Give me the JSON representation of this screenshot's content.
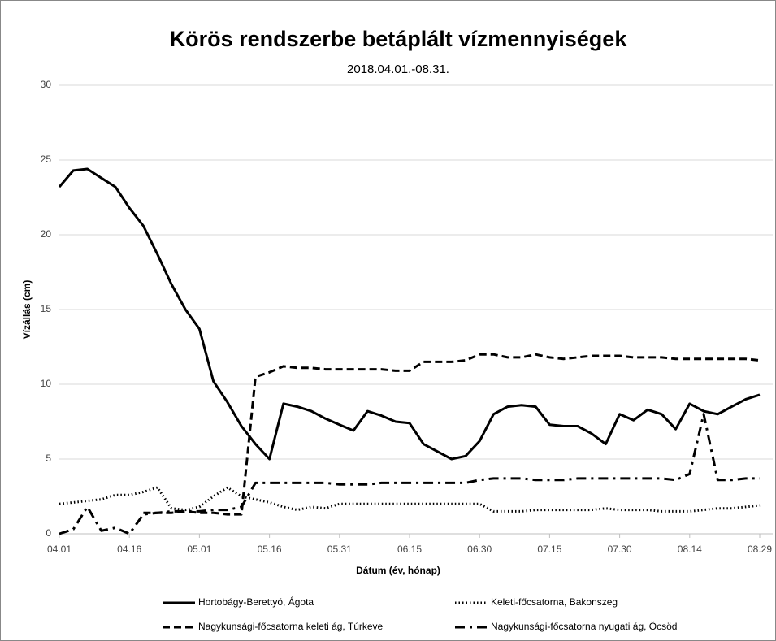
{
  "chart_data": {
    "type": "line",
    "title": "Körös rendszerbe betáplált vízmennyiségek",
    "subtitle": "2018.04.01.-08.31.",
    "x_label": "Dátum (év, hónap)",
    "y_label": "Vízállás (cm)",
    "categories": [
      "04.01",
      null,
      null,
      null,
      null,
      "04.16",
      null,
      null,
      null,
      null,
      "05.01",
      null,
      null,
      null,
      null,
      "05.16",
      null,
      null,
      null,
      null,
      "05.31",
      null,
      null,
      null,
      null,
      "06.15",
      null,
      null,
      null,
      null,
      "06.30",
      null,
      null,
      null,
      null,
      "07.15",
      null,
      null,
      null,
      null,
      "07.30",
      null,
      null,
      null,
      null,
      "08.14",
      null,
      null,
      null,
      null,
      "08.29"
    ],
    "ylim": [
      0,
      30
    ],
    "yticks": [
      0,
      5,
      10,
      15,
      20,
      25,
      30
    ],
    "grid": true,
    "legend": "bottom",
    "series": [
      {
        "name": "Hortobágy-Berettyó, Ágota",
        "color": "#000000",
        "dash": "solid",
        "values": [
          23.2,
          24.3,
          24.4,
          23.8,
          23.2,
          21.8,
          20.6,
          18.7,
          16.7,
          15.0,
          13.7,
          10.2,
          8.8,
          7.2,
          6.0,
          5.0,
          8.7,
          8.5,
          8.2,
          7.7,
          7.3,
          6.9,
          8.2,
          7.9,
          7.5,
          7.4,
          6.0,
          5.5,
          5.0,
          5.2,
          6.2,
          8.0,
          8.5,
          8.6,
          8.5,
          7.3,
          7.2,
          7.2,
          6.7,
          6.0,
          8.0,
          7.6,
          8.3,
          8.0,
          7.0,
          8.7,
          8.2,
          8.0,
          8.5,
          9.0,
          9.3
        ]
      },
      {
        "name": "Keleti-főcsatorna, Bakonszeg",
        "color": "#000000",
        "dash": "dotted",
        "values": [
          2.0,
          2.1,
          2.2,
          2.3,
          2.6,
          2.6,
          2.8,
          3.1,
          1.7,
          1.6,
          1.8,
          2.5,
          3.1,
          2.5,
          2.3,
          2.1,
          1.8,
          1.6,
          1.8,
          1.7,
          2.0,
          2.0,
          2.0,
          2.0,
          2.0,
          2.0,
          2.0,
          2.0,
          2.0,
          2.0,
          2.0,
          1.5,
          1.5,
          1.5,
          1.6,
          1.6,
          1.6,
          1.6,
          1.6,
          1.7,
          1.6,
          1.6,
          1.6,
          1.5,
          1.5,
          1.5,
          1.6,
          1.7,
          1.7,
          1.8,
          1.9
        ]
      },
      {
        "name": "Nagykunsági-főcsatorna keleti ág, Túrkeve",
        "color": "#000000",
        "dash": "dashed",
        "values": [
          null,
          null,
          null,
          null,
          null,
          null,
          1.4,
          1.4,
          1.4,
          1.5,
          1.4,
          1.4,
          1.3,
          1.3,
          10.5,
          10.8,
          11.2,
          11.1,
          11.1,
          11.0,
          11.0,
          11.0,
          11.0,
          11.0,
          10.9,
          10.9,
          11.5,
          11.5,
          11.5,
          11.6,
          12.0,
          12.0,
          11.8,
          11.8,
          12.0,
          11.8,
          11.7,
          11.8,
          11.9,
          11.9,
          11.9,
          11.8,
          11.8,
          11.8,
          11.7,
          11.7,
          11.7,
          11.7,
          11.7,
          11.7,
          11.6
        ]
      },
      {
        "name": "Nagykunsági-főcsatorna nyugati ág, Öcsöd",
        "color": "#000000",
        "dash": "dashdot",
        "values": [
          0,
          0.3,
          1.8,
          0.2,
          0.4,
          0,
          1.3,
          1.4,
          1.5,
          1.5,
          1.5,
          1.6,
          1.6,
          1.8,
          3.4,
          3.4,
          3.4,
          3.4,
          3.4,
          3.4,
          3.3,
          3.3,
          3.3,
          3.4,
          3.4,
          3.4,
          3.4,
          3.4,
          3.4,
          3.4,
          3.6,
          3.7,
          3.7,
          3.7,
          3.6,
          3.6,
          3.6,
          3.7,
          3.7,
          3.7,
          3.7,
          3.7,
          3.7,
          3.7,
          3.6,
          4.0,
          8.0,
          3.6,
          3.6,
          3.7,
          3.7
        ]
      }
    ]
  }
}
